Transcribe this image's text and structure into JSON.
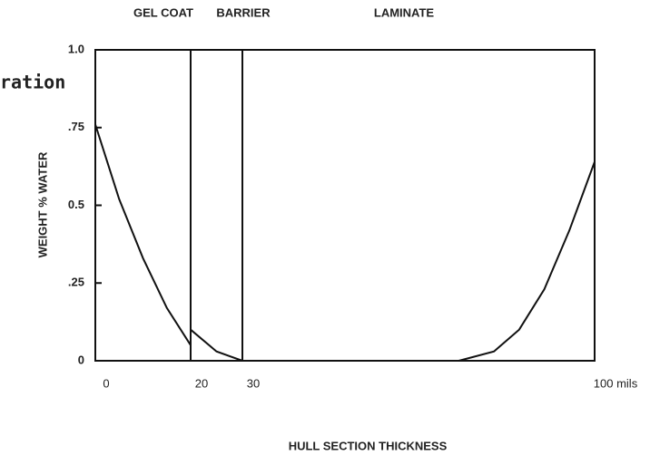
{
  "chart_data": {
    "type": "line",
    "regions": [
      "GEL COAT",
      "BARRIER",
      "LAMINATE"
    ],
    "annotation": "ration",
    "xlabel": "HULL SECTION THICKNESS",
    "ylabel": "WEIGHT % WATER",
    "xticks": [
      0,
      20,
      30,
      {
        "value": 100,
        "label": "100 mils"
      }
    ],
    "yticks": [
      0,
      {
        "value": 0.25,
        "label": ".25"
      },
      {
        "value": 0.5,
        "label": "0.5"
      },
      {
        "value": 0.75,
        "label": ".75"
      },
      {
        "value": 1.0,
        "label": "1.0"
      }
    ],
    "ylim": [
      0,
      1.0
    ],
    "xlim": [
      0,
      100
    ],
    "series": [
      {
        "color": "#111111",
        "x": [
          0,
          5,
          10,
          15,
          20
        ],
        "values": [
          0.76,
          0.52,
          0.33,
          0.17,
          0.05
        ]
      },
      {
        "color": "#111111",
        "x": [
          20,
          25,
          30
        ],
        "values": [
          0.1,
          0.03,
          0
        ]
      },
      {
        "color": "#111111",
        "x": [
          73,
          80,
          85,
          90,
          95,
          100
        ],
        "values": [
          0,
          0.03,
          0.1,
          0.23,
          0.42,
          0.64
        ]
      }
    ]
  }
}
